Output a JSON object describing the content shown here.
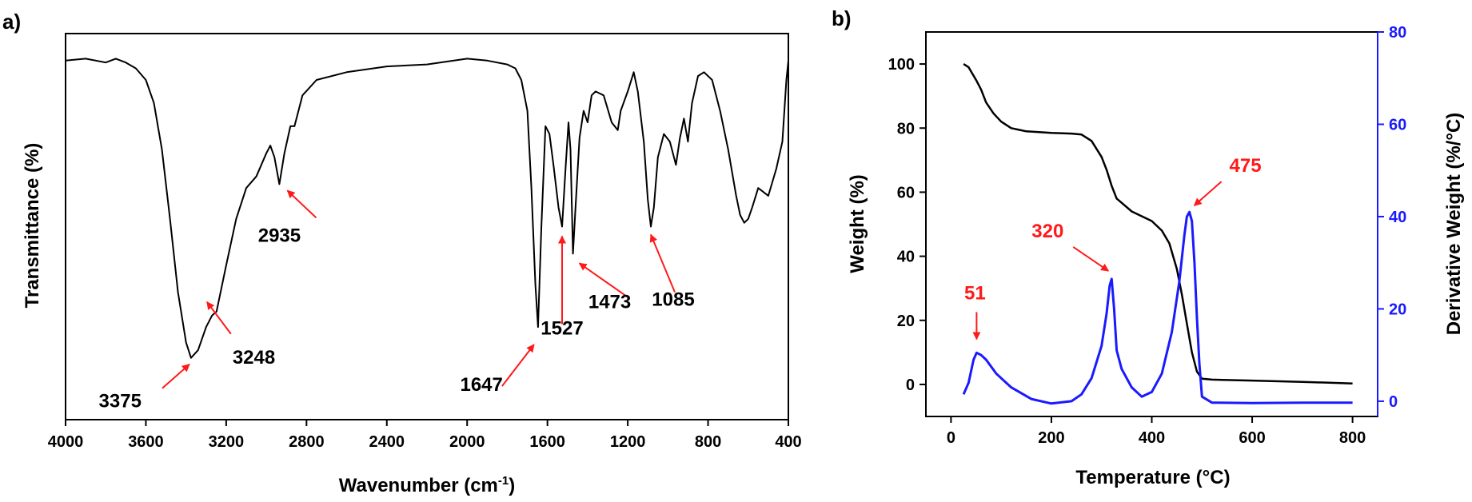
{
  "colors": {
    "annotation": "#ff1a1a",
    "derivative": "#1a1aff",
    "line": "#000000"
  },
  "chart_data": [
    {
      "panel": "a)",
      "type": "line",
      "xlabel": "Wavenumber (cm",
      "xlabel_sup": "-1",
      "xlabel_end": ")",
      "ylabel": "Transmittance (%)",
      "xlim": [
        4000,
        400
      ],
      "x_reversed": true,
      "ylim": [
        0,
        100
      ],
      "y_ticks_shown": false,
      "grid": false,
      "x_ticks": [
        "4000",
        "3600",
        "3200",
        "2800",
        "2400",
        "2000",
        "1600",
        "1200",
        "800",
        "400"
      ],
      "series": [
        {
          "x": [
            4000,
            3900,
            3800,
            3750,
            3700,
            3650,
            3600,
            3560,
            3520,
            3480,
            3440,
            3400,
            3375,
            3340,
            3300,
            3270,
            3248,
            3200,
            3150,
            3100,
            3050,
            3000,
            2980,
            2960,
            2935,
            2910,
            2880,
            2860,
            2820,
            2750,
            2600,
            2400,
            2200,
            2000,
            1900,
            1800,
            1760,
            1730,
            1700,
            1680,
            1660,
            1647,
            1630,
            1610,
            1590,
            1570,
            1545,
            1527,
            1510,
            1495,
            1485,
            1473,
            1460,
            1440,
            1420,
            1400,
            1380,
            1360,
            1320,
            1280,
            1250,
            1235,
            1200,
            1170,
            1150,
            1120,
            1100,
            1085,
            1070,
            1050,
            1020,
            990,
            960,
            940,
            920,
            900,
            880,
            850,
            820,
            780,
            740,
            700,
            660,
            640,
            620,
            600,
            580,
            550,
            500,
            460,
            430,
            410,
            400
          ],
          "y": [
            93,
            93.5,
            92.5,
            93.5,
            92.5,
            91,
            88,
            82,
            70,
            52,
            33,
            20,
            16,
            18,
            24,
            27,
            28,
            40,
            52,
            60,
            63,
            69,
            71,
            68,
            61,
            69,
            76,
            76,
            84,
            88,
            90,
            91.5,
            92,
            93.5,
            93,
            92,
            91,
            88,
            80,
            60,
            35,
            24,
            50,
            76,
            74,
            66,
            55,
            50,
            65,
            77,
            70,
            43,
            55,
            73,
            80,
            77,
            84,
            85,
            84,
            77,
            75,
            80,
            85,
            90,
            85,
            72,
            57,
            50,
            55,
            68,
            74,
            72,
            66,
            73,
            78,
            72,
            82,
            89,
            90,
            88,
            80,
            70,
            58,
            53,
            51,
            52,
            55,
            60,
            58,
            65,
            72,
            88,
            93
          ]
        }
      ],
      "annotations": [
        {
          "label": "3375",
          "x": 3375
        },
        {
          "label": "3248",
          "x": 3248
        },
        {
          "label": "2935",
          "x": 2935
        },
        {
          "label": "1647",
          "x": 1647
        },
        {
          "label": "1527",
          "x": 1527
        },
        {
          "label": "1473",
          "x": 1473
        },
        {
          "label": "1085",
          "x": 1085
        }
      ]
    },
    {
      "panel": "b)",
      "type": "line",
      "xlabel": "Temperature (°C)",
      "ylabel": "Weight (%)",
      "y2label": "Derivative Weight (%/°C)",
      "xlim": [
        -50,
        850
      ],
      "ylim": [
        -10,
        110
      ],
      "y2lim": [
        -3.3,
        80
      ],
      "grid": false,
      "x_ticks": [
        "0",
        "200",
        "400",
        "600",
        "800"
      ],
      "y_ticks": [
        "0",
        "20",
        "40",
        "60",
        "80",
        "100"
      ],
      "y2_ticks": [
        "0",
        "20",
        "40",
        "60",
        "80"
      ],
      "series": [
        {
          "name": "Weight",
          "axis": "left",
          "x": [
            25,
            35,
            50,
            60,
            70,
            85,
            100,
            120,
            150,
            200,
            240,
            260,
            280,
            300,
            310,
            320,
            330,
            345,
            360,
            380,
            400,
            420,
            435,
            450,
            460,
            470,
            480,
            490,
            500,
            520,
            600,
            700,
            800
          ],
          "y": [
            100,
            99,
            95,
            92,
            88,
            84.5,
            82,
            80,
            79,
            78.5,
            78.3,
            78,
            76,
            71,
            67,
            62,
            58,
            56,
            54,
            52.5,
            51,
            48,
            44,
            36,
            28,
            19,
            10,
            4,
            1.8,
            1.5,
            1.2,
            0.8,
            0.3
          ]
        },
        {
          "name": "Derivative Weight",
          "axis": "right",
          "x": [
            25,
            35,
            45,
            51,
            60,
            70,
            90,
            120,
            160,
            200,
            240,
            260,
            280,
            300,
            310,
            316,
            320,
            325,
            330,
            340,
            360,
            380,
            400,
            420,
            440,
            455,
            465,
            470,
            475,
            480,
            485,
            490,
            495,
            500,
            520,
            600,
            700,
            800
          ],
          "y": [
            1.5,
            4,
            9,
            10.5,
            10,
            9,
            6,
            3,
            0.5,
            -0.5,
            0,
            1.5,
            5,
            12,
            19,
            25,
            26.5,
            20,
            11,
            7,
            3,
            1,
            2,
            6,
            15,
            26,
            36,
            40,
            41,
            39,
            30,
            18,
            8,
            1,
            -0.3,
            -0.4,
            -0.3,
            -0.3
          ]
        }
      ],
      "annotations": [
        {
          "label": "51",
          "x": 51,
          "y2": 11
        },
        {
          "label": "320",
          "x": 320,
          "y2": 26.5
        },
        {
          "label": "475",
          "x": 475,
          "y2": 41
        }
      ]
    }
  ]
}
